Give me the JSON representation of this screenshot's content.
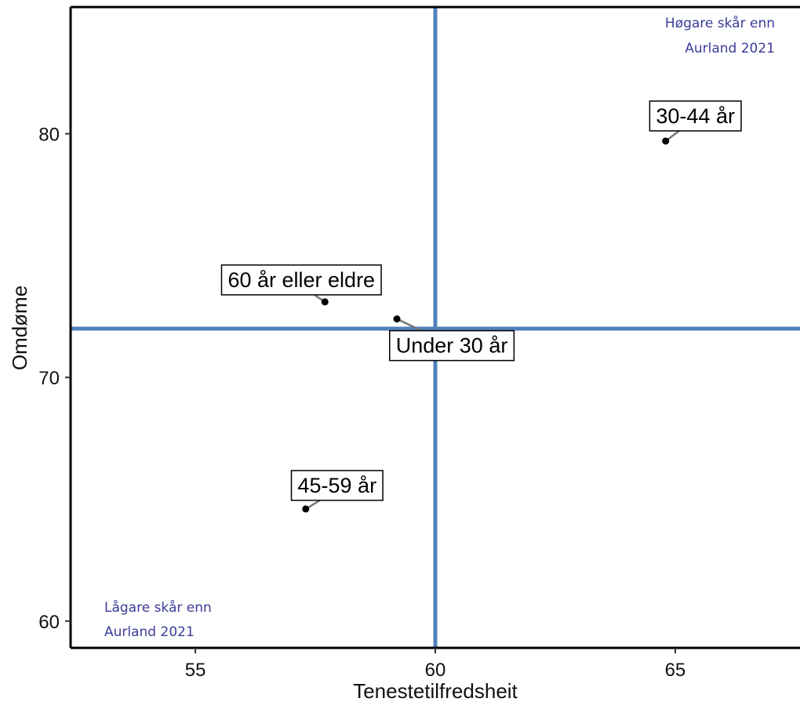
{
  "chart_data": {
    "type": "scatter",
    "xlabel": "Tenestetilfredsheit",
    "ylabel": "Omdøme",
    "xlim": [
      52.4,
      67.6
    ],
    "ylim": [
      58.9,
      85.2
    ],
    "x_ticks": [
      "55",
      "60",
      "65"
    ],
    "y_ticks": [
      "60",
      "70",
      "80"
    ],
    "grid": false,
    "reference_lines": {
      "x": 60,
      "y": 72
    },
    "reference_color": "#4f81bd",
    "points": [
      {
        "label": "30-44 år",
        "x": 64.8,
        "y": 79.7
      },
      {
        "label": "60 år eller eldre",
        "x": 57.7,
        "y": 73.1
      },
      {
        "label": "Under 30 år",
        "x": 59.2,
        "y": 72.4
      },
      {
        "label": "45-59 år",
        "x": 57.3,
        "y": 64.6
      }
    ],
    "annotations": {
      "top_right": [
        "Høgare skår enn",
        "Aurland 2021"
      ],
      "bottom_left": [
        "Lågare skår enn",
        "Aurland 2021"
      ]
    }
  }
}
